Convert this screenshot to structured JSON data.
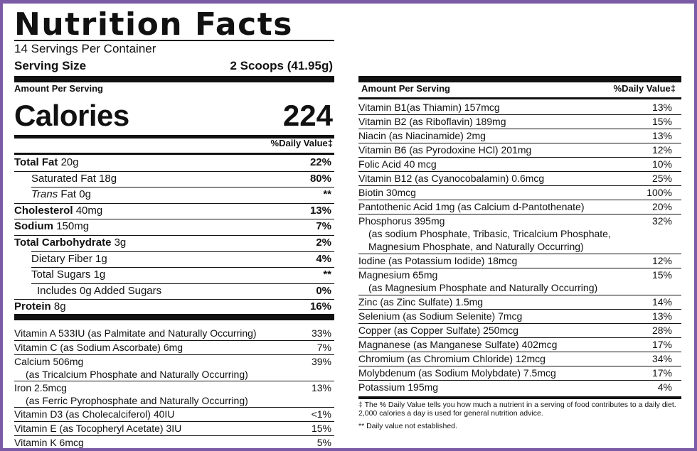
{
  "header": {
    "title": "Nutrition Facts",
    "servings_per_container": "14 Servings Per Container",
    "serving_size_label": "Serving Size",
    "serving_size_value": "2 Scoops (41.95g)"
  },
  "left": {
    "amount_per_serving": "Amount Per Serving",
    "calories_label": "Calories",
    "calories_value": "224",
    "daily_value_header": "%Daily Value‡",
    "macros": [
      {
        "name": "Total Fat",
        "amount": "20g",
        "dv": "22%"
      },
      {
        "name": "Saturated Fat",
        "amount": "18g",
        "dv": "80%"
      },
      {
        "name": "Trans",
        "name2": "Fat",
        "amount": "0g",
        "dv": "**"
      },
      {
        "name": "Cholesterol",
        "amount": "40mg",
        "dv": "13%"
      },
      {
        "name": "Sodium",
        "amount": "150mg",
        "dv": "7%"
      },
      {
        "name": "Total Carbohydrate",
        "amount": "3g",
        "dv": "2%"
      },
      {
        "name": "Dietary Fiber",
        "amount": "1g",
        "dv": "4%"
      },
      {
        "name": "Total Sugars",
        "amount": "1g",
        "dv": "**"
      },
      {
        "name": "Includes 0g Added Sugars",
        "amount": "",
        "dv": "0%"
      },
      {
        "name": "Protein",
        "amount": "8g",
        "dv": "16%"
      }
    ],
    "vitamins": [
      {
        "name": "Vitamin A  533IU (as Palmitate and Naturally Occurring)",
        "dv": "33%"
      },
      {
        "name": "Vitamin C (as Sodium Ascorbate)  6mg",
        "dv": "7%"
      },
      {
        "name": "Calcium  506mg",
        "sub": "(as Tricalcium Phosphate and Naturally Occurring)",
        "dv": "39%"
      },
      {
        "name": "Iron  2.5mcg",
        "sub": "(as Ferric Pyrophosphate and Naturally Occurring)",
        "dv": "13%"
      },
      {
        "name": "Vitamin D3 (as Cholecalciferol)  40IU",
        "dv": "<1%"
      },
      {
        "name": "Vitamin E (as Tocopheryl Acetate)  3IU",
        "dv": "15%"
      },
      {
        "name": "Vitamin K  6mcg",
        "dv": "5%"
      }
    ]
  },
  "right": {
    "amount_per_serving": "Amount Per Serving",
    "daily_value_header": "%Daily Value‡",
    "rows": [
      {
        "name": "Vitamin B1(as Thiamin)  157mcg",
        "dv": "13%"
      },
      {
        "name": "Vitamin B2 (as Riboflavin)  189mg",
        "dv": "15%"
      },
      {
        "name": "Niacin (as Niacinamide)  2mg",
        "dv": "13%"
      },
      {
        "name": "Vitamin B6 (as Pyrodoxine HCl)  201mg",
        "dv": "12%"
      },
      {
        "name": "Folic Acid  40 mcg",
        "dv": "10%"
      },
      {
        "name": "Vitamin B12 (as Cyanocobalamin)  0.6mcg",
        "dv": "25%"
      },
      {
        "name": "Biotin  30mcg",
        "dv": "100%"
      },
      {
        "name": "Pantothenic Acid  1mg (as Calcium d-Pantothenate)",
        "dv": "20%"
      },
      {
        "name": "Phosphorus  395mg",
        "sub1": "(as sodium Phosphate, Tribasic, Tricalcium Phosphate,",
        "sub2": "Magnesium Phosphate, and Naturally Occurring)",
        "dv": "32%"
      },
      {
        "name": "Iodine (as Potassium Iodide)  18mcg",
        "dv": "12%"
      },
      {
        "name": "Magnesium  65mg",
        "sub1": "(as Magnesium Phosphate and Naturally Occurring)",
        "dv": "15%"
      },
      {
        "name": "Zinc (as Zinc Sulfate)  1.5mg",
        "dv": "14%"
      },
      {
        "name": "Selenium (as Sodium Selenite)  7mcg",
        "dv": "13%"
      },
      {
        "name": "Copper (as Copper Sulfate)  250mcg",
        "dv": "28%"
      },
      {
        "name": "Magnanese (as Manganese Sulfate)  402mcg",
        "dv": "17%"
      },
      {
        "name": "Chromium (as Chromium Chloride)  12mcg",
        "dv": "34%"
      },
      {
        "name": "Molybdenum (as Sodium Molybdate)  7.5mcg",
        "dv": "17%"
      },
      {
        "name": "Potassium  195mg",
        "dv": "4%"
      }
    ],
    "footnote1": "‡ The % Daily Value tells you how much a nutrient in a serving of food contributes to a daily diet.",
    "footnote2": "2,000 calories a day is used for general nutrition advice.",
    "footnote3": "** Daily value not established."
  },
  "colors": {
    "border": "#7b5aa6",
    "ink": "#111111"
  }
}
